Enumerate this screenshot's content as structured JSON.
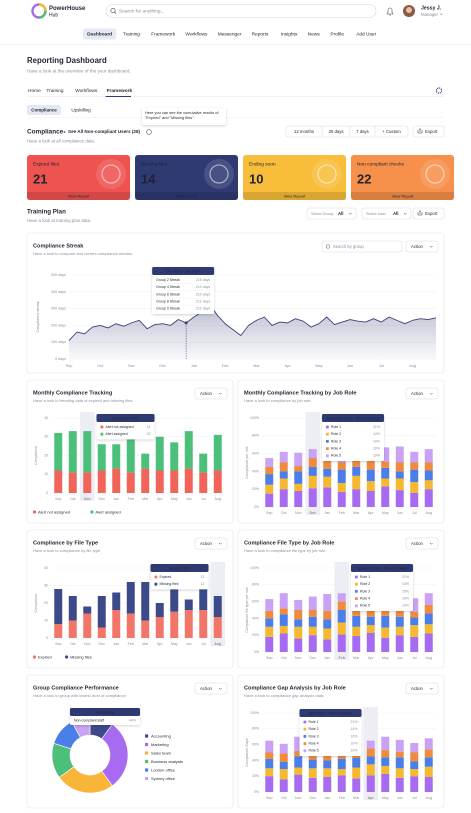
{
  "header": {
    "logo_name": "PowerHouse",
    "logo_sub": "Hub",
    "search_placeholder": "Search for anything...",
    "user_name": "Jessy J.",
    "user_role": "Manager"
  },
  "nav": [
    {
      "label": "Dashboard",
      "active": true
    },
    {
      "label": "Training"
    },
    {
      "label": "Framework"
    },
    {
      "label": "Workflows"
    },
    {
      "label": "Messenger"
    },
    {
      "label": "Reports"
    },
    {
      "label": "Insights"
    },
    {
      "label": "News"
    },
    {
      "label": "Profile"
    },
    {
      "label": "Add User"
    }
  ],
  "page": {
    "title": "Reporting Dashboard",
    "subtitle": "Have a look at the overview of the your dashboard."
  },
  "tabs": [
    {
      "label": "Home"
    },
    {
      "label": "Training"
    },
    {
      "label": "Workflows"
    },
    {
      "label": "Framework",
      "active": true
    }
  ],
  "pills": [
    {
      "label": "Compliance",
      "active": true
    },
    {
      "label": "Upskilling"
    }
  ],
  "help_tooltip": "Here you can see the cumulative results of \"Expired\" and \"Missing files\".",
  "compliance": {
    "title": "Compliance",
    "link": "See All Non-compliant Users (28)",
    "subtitle": "Have a look at all compliance data.",
    "ranges": [
      "12 months",
      "30 days",
      "7 days",
      "+ Custom"
    ],
    "export": "Export"
  },
  "cards": [
    {
      "label": "Expired files",
      "value": 21,
      "link": "View Report",
      "color": "#ef5350"
    },
    {
      "label": "Missing files",
      "value": 14,
      "link": "View Report",
      "color": "#2f3a73"
    },
    {
      "label": "Ending soon",
      "value": 10,
      "link": "View Report",
      "color": "#f8bd3a"
    },
    {
      "label": "Non compliant checks",
      "value": 22,
      "link": "View Report",
      "color": "#f7904a"
    }
  ],
  "training_plan": {
    "title": "Training Plan",
    "subtitle": "Have a look at training plan data.",
    "group_label": "Select Group:",
    "group_value": "All",
    "user_label": "Select User:",
    "user_value": "All",
    "export": "Export"
  },
  "chart_data": [
    {
      "type": "line",
      "title": "Compliance Streak",
      "subtitle": "Have a look to compare and current compliance streaks.",
      "search_placeholder": "Search by group",
      "action": "Action",
      "ylabel": "Compliance streak",
      "color": "#3b4279",
      "categories": [
        "Sep",
        null,
        null,
        null,
        "Oct",
        null,
        null,
        null,
        "Nov",
        null,
        null,
        null,
        "Dec",
        null,
        null,
        null,
        "Jan",
        null,
        null,
        null,
        "Feb",
        null,
        null,
        null,
        "Mar",
        null,
        null,
        null,
        "Apr",
        null,
        null,
        null,
        "May",
        null,
        null,
        null,
        "Jun",
        null,
        null,
        null,
        "Jul",
        null,
        null,
        null,
        "Aug",
        null,
        null,
        null
      ],
      "values": [
        110,
        160,
        150,
        190,
        200,
        185,
        210,
        195,
        215,
        230,
        180,
        205,
        210,
        200,
        235,
        215,
        250,
        280,
        330,
        260,
        210,
        175,
        140,
        200,
        230,
        250,
        200,
        220,
        215,
        240,
        225,
        190,
        210,
        250,
        205,
        220,
        235,
        225,
        220,
        240,
        220,
        250,
        230,
        210,
        230,
        240,
        235,
        245
      ],
      "ylim": [
        0,
        500
      ],
      "yticks": [
        {
          "value": 0,
          "label": "0 days"
        },
        {
          "value": 100,
          "label": "100 days"
        },
        {
          "value": 200,
          "label": "200 days"
        },
        {
          "value": 300,
          "label": "300 days"
        },
        {
          "value": 400,
          "label": "400 days"
        },
        {
          "value": 500,
          "label": "500 days"
        }
      ],
      "tooltip": {
        "index": 15,
        "title": "Dec 2023 - Jan 2024",
        "rows": [
          {
            "label": "Group 2 Streak",
            "value": "215 days"
          },
          {
            "label": "Group 4 Streak",
            "value": "210 days"
          },
          {
            "label": "Group 6 Streak",
            "value": "210 days"
          },
          {
            "label": "Group 8 Streak",
            "value": "212 days"
          },
          {
            "label": "Group 9 Streak",
            "value": "210 days"
          }
        ]
      }
    },
    {
      "type": "stacked_bar",
      "title": "Monthly Compliance Tracking",
      "subtitle": "Have a look to trending data of expired and missing files.",
      "action": "Action",
      "ylabel": "Compliance",
      "legend": "bottom",
      "categories": [
        "Sep",
        "Oct",
        "Nov",
        "Dec",
        "Jan",
        "Feb",
        "Mar",
        "Apr",
        "May",
        "Jun",
        "Jul",
        "Aug"
      ],
      "series": [
        {
          "name": "Alert not assigned",
          "color": "#f0645a",
          "values": [
            12,
            11,
            11,
            12,
            13,
            11,
            13,
            12,
            12,
            13,
            11,
            12
          ]
        },
        {
          "name": "Alert assigned",
          "color": "#4cc07a",
          "values": [
            20,
            22,
            22,
            14,
            13,
            20,
            8,
            18,
            15,
            20,
            10,
            19
          ]
        }
      ],
      "ylim": [
        0,
        40
      ],
      "yticks": [
        0,
        10,
        20,
        30,
        40
      ],
      "tooltip": {
        "index": 2,
        "title": "November 2023"
      }
    },
    {
      "type": "stacked_bar",
      "title": "Monthly Compliance Tracking by Job Role",
      "subtitle": "Have a look to compliance by job role.",
      "action": "Action",
      "ylabel": "Compliance per role",
      "categories": [
        "Sep",
        "Oct",
        "Nov",
        "Dec",
        "Jan",
        "Feb",
        "Mar",
        "Apr",
        "May",
        "Jun",
        "Jul",
        "Aug"
      ],
      "series": [
        {
          "name": "Role 1",
          "color": "#a66bf0",
          "values": [
            15,
            20,
            18,
            21,
            22,
            17,
            20,
            18,
            23,
            19,
            16,
            20
          ]
        },
        {
          "name": "Role 2",
          "color": "#f5b82e",
          "values": [
            10,
            12,
            8,
            14,
            12,
            10,
            15,
            11,
            9,
            13,
            12,
            10
          ]
        },
        {
          "name": "Role 3",
          "color": "#4a7ee8",
          "values": [
            12,
            8,
            14,
            10,
            9,
            15,
            10,
            13,
            12,
            8,
            14,
            11
          ]
        },
        {
          "name": "Role 4",
          "color": "#f08a3c",
          "values": [
            8,
            10,
            6,
            10,
            12,
            8,
            9,
            11,
            7,
            10,
            8,
            9
          ]
        },
        {
          "name": "Role 5",
          "color": "#c9a2f5",
          "values": [
            10,
            12,
            15,
            10,
            14,
            20,
            12,
            10,
            16,
            18,
            12,
            15
          ]
        }
      ],
      "ylim": [
        0,
        100
      ],
      "yticks": [
        {
          "value": 0,
          "label": "0%"
        },
        {
          "value": 20,
          "label": "20%"
        },
        {
          "value": 40,
          "label": "40%"
        },
        {
          "value": 60,
          "label": "60%"
        },
        {
          "value": 80,
          "label": "80%"
        },
        {
          "value": 100,
          "label": "100%"
        }
      ],
      "tooltip": {
        "index": 3,
        "title": "December 2023 - Non-compliant",
        "value_labels": [
          "21%",
          "14%",
          "10%",
          "10%",
          "10%"
        ]
      }
    },
    {
      "type": "stacked_bar",
      "title": "Compliance by File Type",
      "subtitle": "Have a look to compliance by file type.",
      "action": "Action",
      "ylabel": "Compliance",
      "legend": "bottom",
      "categories": [
        "Sep",
        "Oct",
        "Nov",
        "Dec",
        "Jan",
        "Feb",
        "Mar",
        "Apr",
        "May",
        "Jun",
        "Jul",
        "Aug"
      ],
      "series": [
        {
          "name": "Expired",
          "color": "#f2756a",
          "values": [
            8,
            10,
            14,
            6,
            16,
            14,
            10,
            12,
            15,
            16,
            16,
            12
          ]
        },
        {
          "name": "Missing files",
          "color": "#3c4a8a",
          "values": [
            20,
            14,
            4,
            18,
            10,
            18,
            22,
            8,
            16,
            6,
            14,
            12
          ]
        }
      ],
      "ylim": [
        0,
        40
      ],
      "yticks": [
        0,
        10,
        20,
        30,
        40
      ],
      "tooltip": {
        "index": 11,
        "title": "August 2024"
      }
    },
    {
      "type": "stacked_bar",
      "title": "Compliance File Type by Job Role",
      "subtitle": "Have a look to compliance file type by job role.",
      "action": "Action",
      "ylabel": "Compliance file type per role",
      "categories": [
        "Sep",
        "Oct",
        "Nov",
        "Dec",
        "Jan",
        "Feb",
        "Mar",
        "Apr",
        "May",
        "Jun",
        "Jul",
        "Aug"
      ],
      "series": [
        {
          "name": "Role 1",
          "color": "#a66bf0",
          "values": [
            18,
            22,
            16,
            20,
            15,
            21,
            19,
            23,
            17,
            20,
            18,
            22
          ]
        },
        {
          "name": "Role 2",
          "color": "#f5b82e",
          "values": [
            12,
            9,
            14,
            10,
            13,
            14,
            11,
            9,
            12,
            10,
            14,
            11
          ]
        },
        {
          "name": "Role 3",
          "color": "#4a7ee8",
          "values": [
            10,
            14,
            9,
            12,
            11,
            15,
            13,
            10,
            14,
            12,
            9,
            13
          ]
        },
        {
          "name": "Role 4",
          "color": "#f08a3c",
          "values": [
            9,
            7,
            11,
            8,
            10,
            10,
            8,
            12,
            9,
            11,
            7,
            10
          ]
        },
        {
          "name": "Role 5",
          "color": "#c9a2f5",
          "values": [
            14,
            18,
            12,
            16,
            20,
            10,
            15,
            13,
            18,
            12,
            16,
            14
          ]
        }
      ],
      "ylim": [
        0,
        100
      ],
      "yticks": [
        {
          "value": 0,
          "label": "0%"
        },
        {
          "value": 20,
          "label": "20%"
        },
        {
          "value": 40,
          "label": "40%"
        },
        {
          "value": 60,
          "label": "60%"
        },
        {
          "value": 80,
          "label": "80%"
        },
        {
          "value": 100,
          "label": "100%"
        }
      ],
      "tooltip": {
        "index": 5,
        "title": "February 2024 - Non-compliant",
        "value_labels": [
          "21%",
          "14%",
          "15%",
          "10%",
          "10%"
        ]
      }
    },
    {
      "type": "donut",
      "title": "Group Compliance Performance",
      "subtitle": "Have a look to group with lowest level of compliance.",
      "action": "Action",
      "categories": [
        "Accounting",
        "Marketing",
        "Sales team",
        "Business analysts",
        "London office",
        "Sydney office"
      ],
      "values": [
        10,
        30,
        25,
        15,
        12,
        8
      ],
      "colors": [
        "#3c4a8a",
        "#a66bf0",
        "#f9b53a",
        "#4cc07a",
        "#4a7ee8",
        "#c9a2f5"
      ],
      "tooltip": {
        "title": "Accounting",
        "label": "Non-compliant staff",
        "value": "44%"
      }
    },
    {
      "type": "stacked_bar",
      "title": "Compliance Gap Analysis by Job Role",
      "subtitle": "Have a look to compliance gap analysis data.",
      "action": "Action",
      "ylabel": "Compliance Gaps",
      "categories": [
        "Sep",
        "Oct",
        "Nov",
        "Dec",
        "Jan",
        "Feb",
        "Mar",
        "Apr",
        "May",
        "Jun",
        "Jul",
        "Aug"
      ],
      "series": [
        {
          "name": "Role 1",
          "color": "#a66bf0",
          "values": [
            20,
            16,
            22,
            18,
            19,
            21,
            17,
            21,
            23,
            18,
            20,
            19
          ]
        },
        {
          "name": "Role 2",
          "color": "#f5b82e",
          "values": [
            10,
            13,
            9,
            12,
            11,
            8,
            14,
            14,
            10,
            12,
            9,
            13
          ]
        },
        {
          "name": "Role 3",
          "color": "#4a7ee8",
          "values": [
            12,
            9,
            14,
            11,
            10,
            13,
            12,
            10,
            11,
            14,
            10,
            12
          ]
        },
        {
          "name": "Role 4",
          "color": "#f08a3c",
          "values": [
            8,
            11,
            7,
            10,
            9,
            12,
            8,
            10,
            9,
            7,
            11,
            10
          ]
        },
        {
          "name": "Role 5",
          "color": "#c9a2f5",
          "values": [
            15,
            12,
            18,
            14,
            16,
            10,
            13,
            10,
            17,
            15,
            12,
            14
          ]
        }
      ],
      "ylim": [
        0,
        100
      ],
      "yticks": [
        {
          "value": 0,
          "label": "0%"
        },
        {
          "value": 20,
          "label": "20%"
        },
        {
          "value": 40,
          "label": "40%"
        },
        {
          "value": 60,
          "label": "60%"
        },
        {
          "value": 80,
          "label": "80%"
        },
        {
          "value": 100,
          "label": "100%"
        }
      ],
      "tooltip": {
        "index": 7,
        "title": "April 2024 - Non-compliant",
        "value_labels": [
          "21%",
          "14%",
          "10%",
          "10%",
          "10%"
        ]
      }
    }
  ]
}
